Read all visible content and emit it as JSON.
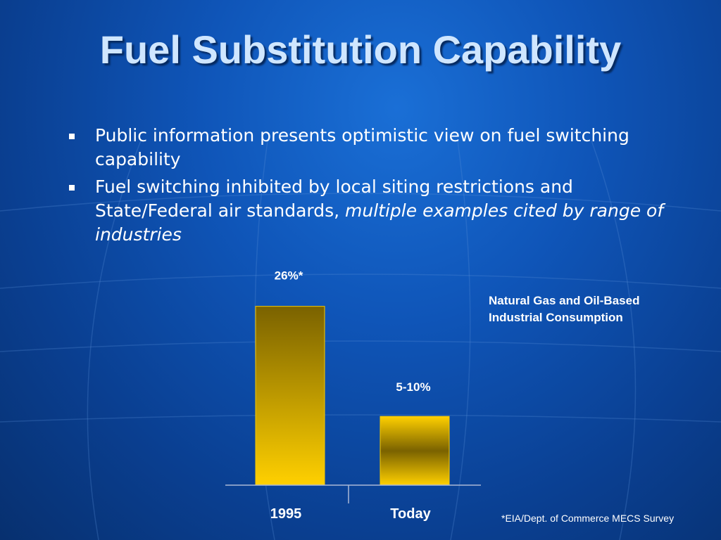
{
  "slide": {
    "title": "Fuel Substitution Capability",
    "bullets": [
      {
        "text": "Public information presents optimistic view on fuel switching capability",
        "emphasis": ""
      },
      {
        "text": "Fuel switching inhibited by local siting restrictions and State/Federal air standards, ",
        "emphasis": "multiple examples cited by range of industries"
      }
    ],
    "footnote": "*EIA/Dept. of Commerce MECS Survey"
  },
  "chart_data": {
    "type": "bar",
    "title": "Natural Gas and Oil-Based Industrial Consumption",
    "title_lines": [
      "Natural Gas and Oil-Based",
      "Industrial Consumption"
    ],
    "categories": [
      "1995",
      "Today"
    ],
    "values": [
      26,
      10
    ],
    "data_labels": [
      "26%*",
      "5-10%"
    ],
    "ylim": [
      0,
      27.6
    ],
    "grid": false,
    "colors": {
      "bar_top": "#7a6200",
      "bar_bottom": "#ffd000",
      "bar_edge": "#f5c800",
      "axis": "#aab8d6"
    }
  }
}
